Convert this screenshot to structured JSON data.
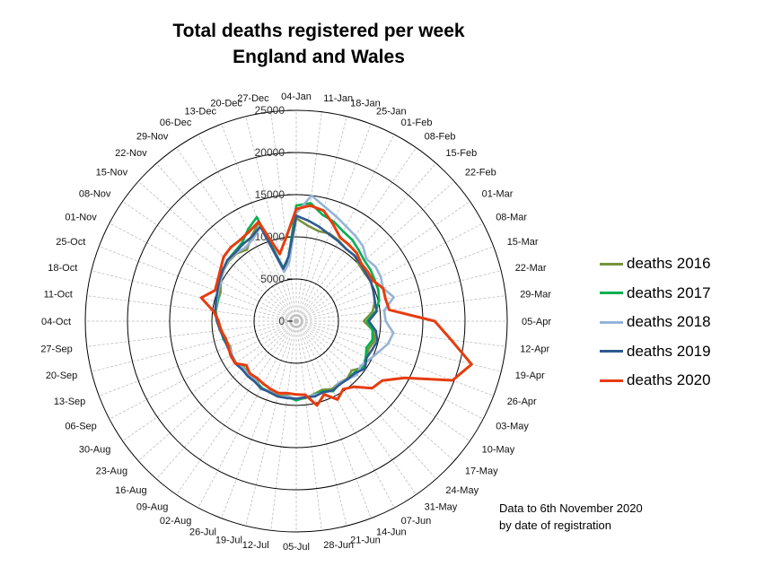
{
  "chart_data": {
    "type": "radar",
    "title_line1": "Total deaths registered per week",
    "title_line2": "England and Wales",
    "radial_ticks": [
      0,
      5000,
      10000,
      15000,
      20000,
      25000
    ],
    "rmax": 25000,
    "categories": [
      "04-Jan",
      "11-Jan",
      "18-Jan",
      "25-Jan",
      "01-Feb",
      "08-Feb",
      "15-Feb",
      "22-Feb",
      "01-Mar",
      "08-Mar",
      "15-Mar",
      "22-Mar",
      "29-Mar",
      "05-Apr",
      "12-Apr",
      "19-Apr",
      "26-Apr",
      "03-May",
      "10-May",
      "17-May",
      "24-May",
      "31-May",
      "07-Jun",
      "14-Jun",
      "21-Jun",
      "28-Jun",
      "05-Jul",
      "12-Jul",
      "19-Jul",
      "26-Jul",
      "02-Aug",
      "09-Aug",
      "16-Aug",
      "23-Aug",
      "30-Aug",
      "06-Sep",
      "13-Sep",
      "20-Sep",
      "27-Sep",
      "04-Oct",
      "11-Oct",
      "18-Oct",
      "25-Oct",
      "01-Nov",
      "08-Nov",
      "15-Nov",
      "22-Nov",
      "29-Nov",
      "06-Dec",
      "13-Dec",
      "20-Dec",
      "27-Dec"
    ],
    "series": [
      {
        "name": "deaths 2016",
        "color": "#77933c",
        "values": [
          12200,
          11400,
          11000,
          11100,
          10800,
          10400,
          10400,
          10000,
          9900,
          10000,
          9800,
          9600,
          9100,
          8000,
          9200,
          9600,
          9200,
          9300,
          9700,
          8800,
          9100,
          8900,
          9100,
          8700,
          8900,
          9200,
          9300,
          8900,
          9100,
          8900,
          9000,
          8400,
          8400,
          8300,
          8700,
          8600,
          8400,
          8700,
          8900,
          9300,
          9600,
          9600,
          9600,
          10100,
          10500,
          10700,
          10700,
          10300,
          11400,
          12500,
          6500,
          7200
        ]
      },
      {
        "name": "deaths 2017",
        "color": "#00b050",
        "values": [
          13700,
          14100,
          13000,
          12600,
          12000,
          11700,
          11200,
          10800,
          10700,
          10500,
          10400,
          10100,
          9500,
          8400,
          9100,
          9300,
          8900,
          9300,
          9600,
          9200,
          9200,
          9000,
          9400,
          8900,
          9000,
          9100,
          9400,
          9000,
          9200,
          9000,
          8900,
          8500,
          8400,
          8400,
          8800,
          8700,
          8600,
          8900,
          9000,
          9400,
          9700,
          9600,
          9900,
          10200,
          10600,
          10900,
          11000,
          11300,
          12300,
          13200,
          6500,
          7600
        ]
      },
      {
        "name": "deaths 2018",
        "color": "#95b3d7",
        "values": [
          12800,
          15000,
          14000,
          13300,
          12700,
          12300,
          11900,
          11100,
          11400,
          11300,
          11000,
          11900,
          10500,
          10600,
          11600,
          11200,
          10400,
          9800,
          9300,
          9600,
          9200,
          8900,
          9300,
          9100,
          9000,
          9100,
          9200,
          9000,
          9200,
          8900,
          9100,
          8500,
          8500,
          8400,
          8800,
          8600,
          8500,
          8800,
          9000,
          9400,
          9700,
          9700,
          9900,
          10100,
          10500,
          10800,
          10800,
          10600,
          11000,
          12000,
          6000,
          7000
        ]
      },
      {
        "name": "deaths 2019",
        "color": "#2e5a8f",
        "values": [
          12500,
          12000,
          11500,
          11000,
          10700,
          10400,
          10400,
          10200,
          10000,
          10000,
          9800,
          9600,
          9600,
          8600,
          9500,
          9900,
          9600,
          9400,
          9900,
          9300,
          9200,
          9100,
          9300,
          9000,
          9200,
          9100,
          9200,
          9200,
          9200,
          9000,
          9000,
          8700,
          8700,
          8600,
          8800,
          8700,
          8700,
          8800,
          9100,
          9400,
          9700,
          9800,
          10000,
          10300,
          10600,
          10900,
          10900,
          11100,
          11300,
          12000,
          6400,
          7700
        ]
      },
      {
        "name": "deaths 2020",
        "color": "#e63c0f",
        "values": [
          13300,
          13800,
          13500,
          12300,
          11200,
          11000,
          10800,
          10300,
          10300,
          10300,
          11000,
          10900,
          11100,
          16400,
          18500,
          21400,
          19800,
          14500,
          12400,
          12000,
          10400,
          9800,
          10500,
          9300,
          10300,
          8800,
          8700,
          8600,
          8800,
          8600,
          8400,
          8200,
          8300,
          7900,
          8800,
          8800,
          8600,
          8600,
          9000,
          9200,
          9900,
          11600,
          10300,
          10500,
          10900,
          11500,
          11700,
          11700,
          12000,
          12600,
          8200,
          10000
        ]
      }
    ],
    "legend_position": "right",
    "grid": true,
    "note_line1": "Data to 6th November 2020",
    "note_line2": "by date of registration"
  }
}
